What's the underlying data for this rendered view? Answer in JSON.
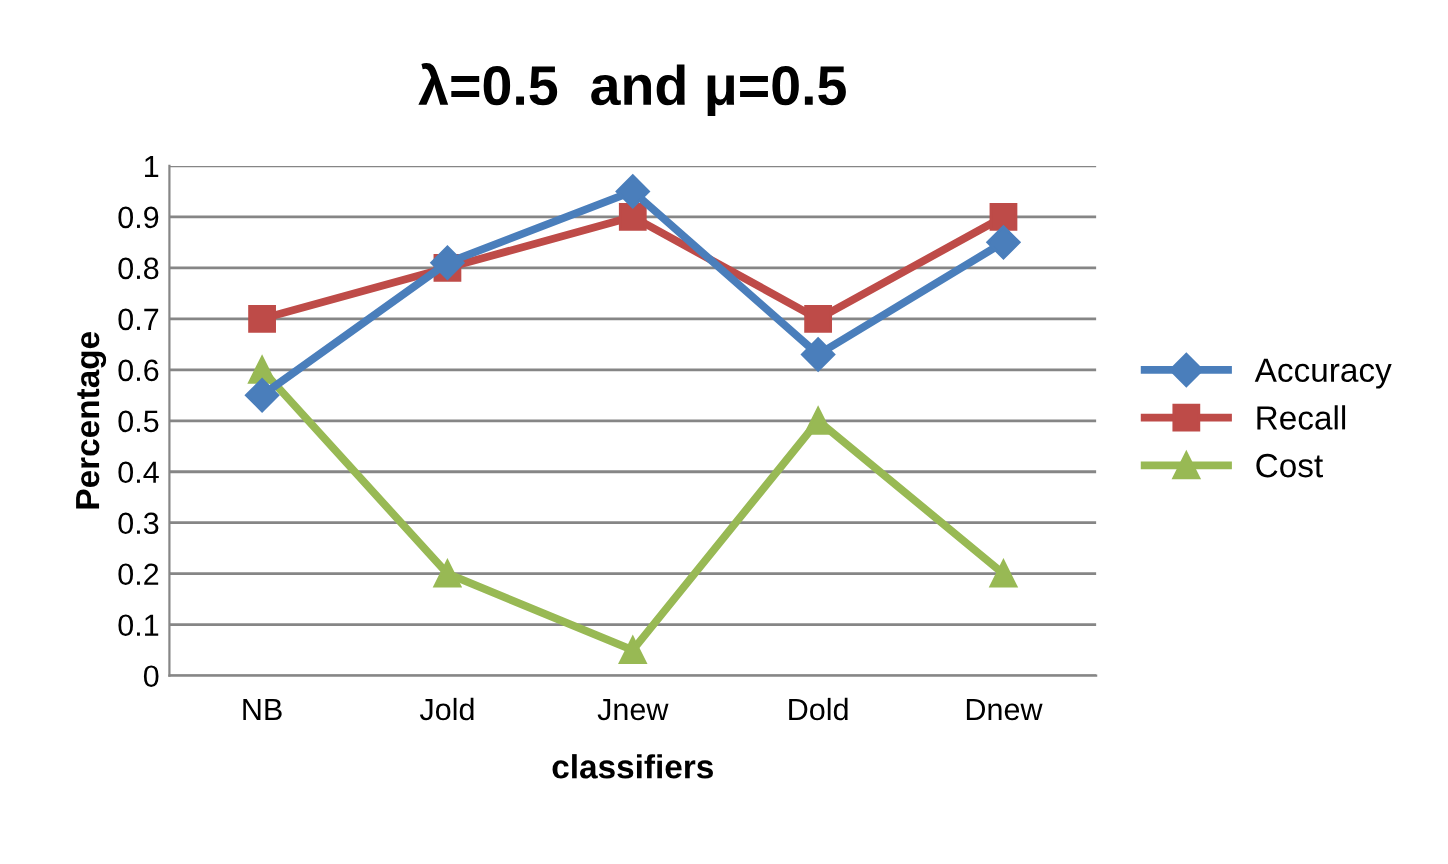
{
  "chart_data": {
    "type": "line",
    "title": "λ=0.5  and μ=0.5",
    "xlabel": "classifiers",
    "ylabel": "Percentage",
    "categories": [
      "NB",
      "Jold",
      "Jnew",
      "Dold",
      "Dnew"
    ],
    "series": [
      {
        "name": "Accuracy",
        "color": "#4a7ebb",
        "marker": "diamond",
        "values": [
          0.55,
          0.81,
          0.95,
          0.63,
          0.85
        ]
      },
      {
        "name": "Recall",
        "color": "#be4b48",
        "marker": "square",
        "values": [
          0.7,
          0.8,
          0.9,
          0.7,
          0.9
        ]
      },
      {
        "name": "Cost",
        "color": "#98b954",
        "marker": "triangle",
        "values": [
          0.6,
          0.2,
          0.05,
          0.5,
          0.2
        ]
      }
    ],
    "ylim": [
      0,
      1
    ],
    "yticks": [
      0,
      0.1,
      0.2,
      0.3,
      0.4,
      0.5,
      0.6,
      0.7,
      0.8,
      0.9,
      1
    ],
    "grid": "y",
    "legend": "right",
    "line_style": "solid"
  }
}
